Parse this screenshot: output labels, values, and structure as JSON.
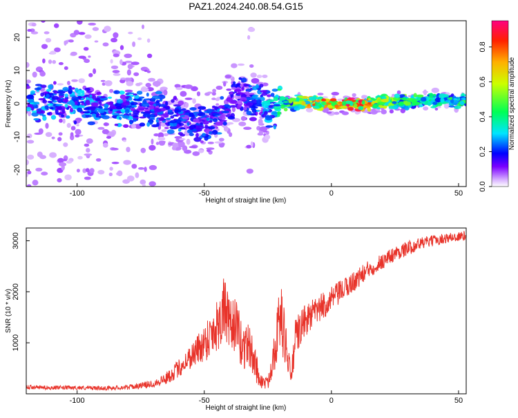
{
  "title": "PAZ1.2024.240.08.54.G15",
  "chart_data": [
    {
      "type": "heatmap",
      "xlabel": "Height of straight line (km)",
      "ylabel": "Frequency (Hz)",
      "xlim": [
        -120,
        53
      ],
      "ylim": [
        -25,
        25
      ],
      "xticks": [
        -100,
        -50,
        0,
        50
      ],
      "yticks": [
        -20,
        -10,
        0,
        10,
        20
      ],
      "grid": false,
      "colorbar": {
        "label": "Normalized spectral amplitude",
        "range": [
          0,
          0.95
        ],
        "ticks": [
          0.0,
          0.2,
          0.4,
          0.6,
          0.8
        ],
        "colors": [
          "#ffffff",
          "#d9b3ff",
          "#7b00ff",
          "#0000ff",
          "#00e5ff",
          "#00ff55",
          "#ccff00",
          "#ffb000",
          "#ff2000",
          "#ff0080"
        ]
      },
      "ridge": {
        "x": [
          -120,
          -110,
          -100,
          -90,
          -80,
          -70,
          -62,
          -55,
          -50,
          -45,
          -42,
          -38,
          -35,
          -32,
          -28,
          -24,
          -20,
          -15,
          -10,
          -5,
          0,
          10,
          20,
          30,
          40,
          53
        ],
        "y": [
          0,
          1,
          0,
          -1,
          -1,
          -2,
          -4,
          -5,
          -6,
          -5,
          -2,
          2,
          3,
          2,
          0,
          -2,
          0,
          0,
          1,
          0,
          0,
          0,
          0.5,
          0.5,
          1,
          1
        ],
        "amplitude": [
          0.3,
          0.3,
          0.3,
          0.3,
          0.3,
          0.25,
          0.25,
          0.25,
          0.25,
          0.25,
          0.25,
          0.2,
          0.2,
          0.25,
          0.3,
          0.35,
          0.45,
          0.55,
          0.7,
          0.85,
          0.9,
          0.95,
          0.65,
          0.5,
          0.45,
          0.45
        ]
      }
    },
    {
      "type": "line",
      "xlabel": "Height of straight line (km)",
      "ylabel": "SNR (10 * v/v)",
      "xlim": [
        -120,
        53
      ],
      "ylim": [
        0,
        3250
      ],
      "xticks": [
        -100,
        -50,
        0,
        50
      ],
      "yticks": [
        1000,
        2000,
        3000
      ],
      "grid": false,
      "series": [
        {
          "color": "#e8332a",
          "x": [
            -120,
            -110,
            -100,
            -90,
            -80,
            -75,
            -70,
            -65,
            -60,
            -55,
            -50,
            -45,
            -42,
            -40,
            -38,
            -35,
            -33,
            -30,
            -28,
            -25,
            -22,
            -20,
            -18,
            -16,
            -14,
            -12,
            -10,
            -5,
            0,
            5,
            10,
            15,
            20,
            25,
            30,
            35,
            40,
            45,
            50,
            53
          ],
          "y": [
            130,
            120,
            120,
            110,
            130,
            160,
            200,
            300,
            500,
            750,
            1000,
            1350,
            1700,
            1250,
            1400,
            900,
            1000,
            600,
            250,
            200,
            1000,
            1550,
            1000,
            300,
            1100,
            1300,
            1450,
            1650,
            1850,
            2050,
            2250,
            2450,
            2600,
            2750,
            2850,
            2950,
            3000,
            3050,
            3080,
            3100
          ],
          "noise": [
            40,
            40,
            40,
            40,
            50,
            60,
            80,
            120,
            180,
            250,
            380,
            550,
            650,
            550,
            550,
            500,
            450,
            350,
            150,
            120,
            500,
            650,
            500,
            200,
            400,
            350,
            320,
            280,
            250,
            220,
            200,
            180,
            160,
            150,
            140,
            120,
            110,
            100,
            100,
            100
          ]
        }
      ]
    }
  ]
}
